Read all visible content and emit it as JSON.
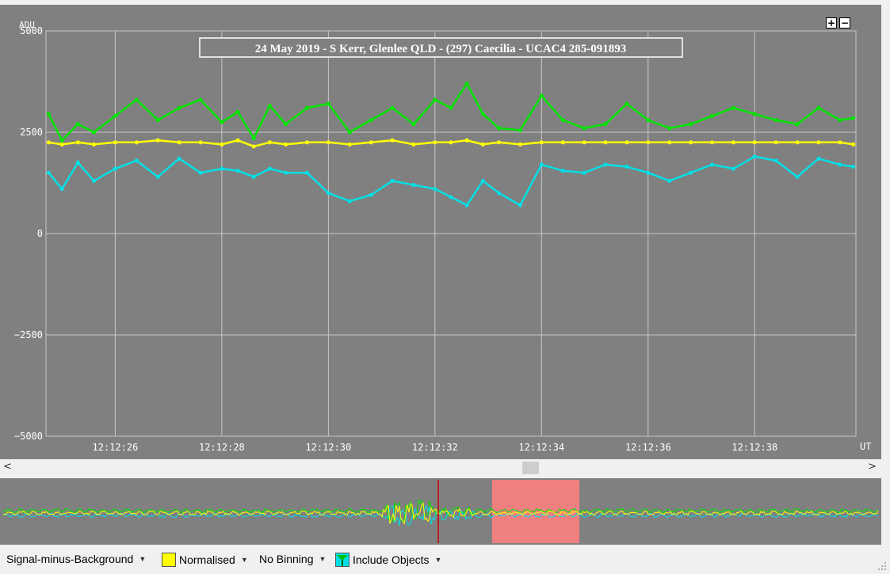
{
  "chart": {
    "title": "24 May 2019 - S Kerr, Glenlee QLD - (297) Caecilia - UCAC4 285-091893",
    "y_unit_label": "ADU",
    "x_unit_label": "UT",
    "y_ticks": [
      "5000",
      "2500",
      "0",
      "−2500",
      "−5000"
    ],
    "x_ticks": [
      "12:12:26",
      "12:12:28",
      "12:12:30",
      "12:12:32",
      "12:12:34",
      "12:12:36",
      "12:12:38"
    ],
    "zoom_in_label": "+",
    "zoom_out_label": "−"
  },
  "scrollbar": {
    "left_arrow": "<",
    "right_arrow": ">"
  },
  "statusbar": {
    "mode_label": "Signal-minus-Background",
    "normalised_label": "Normalised",
    "binning_label": "No Binning",
    "include_objects_label": "Include Objects",
    "normalised_color": "#ffff00"
  },
  "colors": {
    "target": "#00e600",
    "comparison": "#00e0e6",
    "normalised": "#ffff00",
    "plot_bg": "#808080",
    "overview_selection": "#f08080",
    "cursor": "#cc0000"
  },
  "chart_data": {
    "type": "scatter",
    "title": "24 May 2019 - S Kerr, Glenlee QLD - (297) Caecilia - UCAC4 285-091893",
    "ylabel": "ADU",
    "xlabel": "UT",
    "ylim": [
      -5000,
      5000
    ],
    "xlim_seconds_of_minute": [
      24.7,
      39.9
    ],
    "grid": true,
    "series": [
      {
        "x": [
          24.75,
          25.0,
          25.3,
          25.6,
          26.0,
          26.4,
          26.8,
          27.2,
          27.6,
          28.0,
          28.3,
          28.6,
          28.9,
          29.2,
          29.6,
          30.0,
          30.4,
          30.8,
          31.2,
          31.6,
          32.0,
          32.3,
          32.6,
          32.9,
          33.2,
          33.6,
          34.0,
          34.4,
          34.8,
          35.2,
          35.6,
          36.0,
          36.4,
          36.8,
          37.2,
          37.6,
          38.0,
          38.4,
          38.8,
          39.2,
          39.6,
          39.85
        ],
        "values": [
          2950,
          2300,
          2700,
          2500,
          2900,
          3300,
          2800,
          3100,
          3300,
          2750,
          3000,
          2350,
          3150,
          2700,
          3100,
          3200,
          2500,
          2800,
          3100,
          2700,
          3300,
          3100,
          3700,
          2950,
          2600,
          2550,
          3400,
          2800,
          2600,
          2700,
          3200,
          2800,
          2600,
          2700,
          2900,
          3100,
          2950,
          2800,
          2700,
          3100,
          2800,
          2850
        ]
      },
      {
        "x": [
          24.75,
          25.0,
          25.3,
          25.6,
          26.0,
          26.4,
          26.8,
          27.2,
          27.6,
          28.0,
          28.3,
          28.6,
          28.9,
          29.2,
          29.6,
          30.0,
          30.4,
          30.8,
          31.2,
          31.6,
          32.0,
          32.3,
          32.6,
          32.9,
          33.2,
          33.6,
          34.0,
          34.4,
          34.8,
          35.2,
          35.6,
          36.0,
          36.4,
          36.8,
          37.2,
          37.6,
          38.0,
          38.4,
          38.8,
          39.2,
          39.6,
          39.85
        ],
        "values": [
          2250,
          2200,
          2250,
          2200,
          2250,
          2250,
          2300,
          2250,
          2250,
          2200,
          2300,
          2150,
          2250,
          2200,
          2250,
          2250,
          2200,
          2250,
          2300,
          2200,
          2250,
          2250,
          2300,
          2200,
          2250,
          2200,
          2250,
          2250,
          2250,
          2250,
          2250,
          2250,
          2250,
          2250,
          2250,
          2250,
          2250,
          2250,
          2250,
          2250,
          2250,
          2200
        ]
      },
      {
        "x": [
          24.75,
          25.0,
          25.3,
          25.6,
          26.0,
          26.4,
          26.8,
          27.2,
          27.6,
          28.0,
          28.3,
          28.6,
          28.9,
          29.2,
          29.6,
          30.0,
          30.4,
          30.8,
          31.2,
          31.6,
          32.0,
          32.3,
          32.6,
          32.9,
          33.2,
          33.6,
          34.0,
          34.4,
          34.8,
          35.2,
          35.6,
          36.0,
          36.4,
          36.8,
          37.2,
          37.6,
          38.0,
          38.4,
          38.8,
          39.2,
          39.6,
          39.85
        ],
        "values": [
          1500,
          1100,
          1750,
          1300,
          1600,
          1800,
          1400,
          1850,
          1500,
          1600,
          1550,
          1400,
          1600,
          1500,
          1500,
          1000,
          800,
          950,
          1300,
          1200,
          1100,
          900,
          700,
          1300,
          1000,
          700,
          1700,
          1550,
          1500,
          1700,
          1650,
          1500,
          1300,
          1500,
          1700,
          1600,
          1900,
          1800,
          1400,
          1850,
          1700,
          1650
        ]
      }
    ]
  }
}
